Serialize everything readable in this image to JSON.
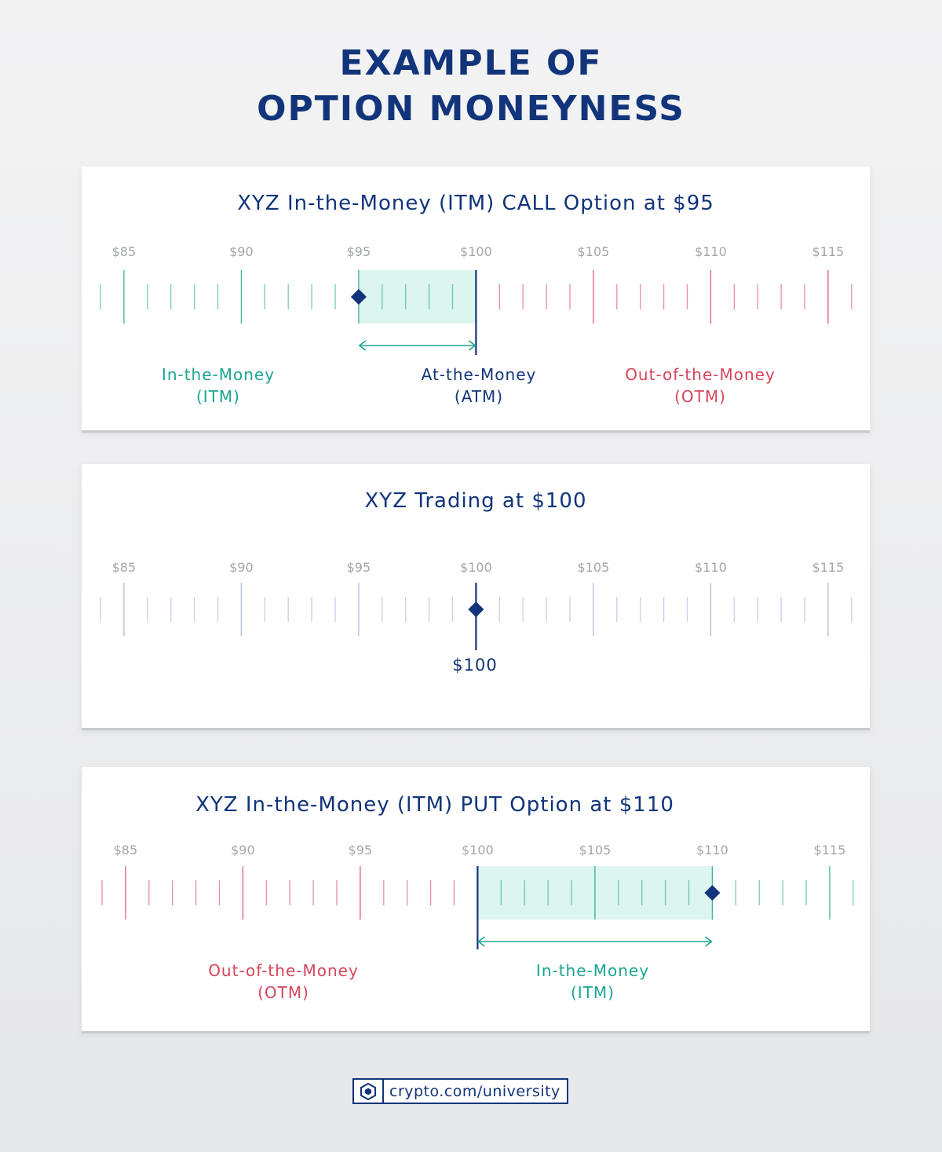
{
  "page": {
    "title_line1": "EXAMPLE OF",
    "title_line2": "OPTION MONEYNESS"
  },
  "colors": {
    "navy": "#11347a",
    "itm_green": "#1aa58f",
    "otm_red": "#d6445a",
    "zone_fill": "#dcf5ef",
    "neutral_tick": "#9db3d9",
    "tick_label_gray": "#a3a6ab"
  },
  "scale": {
    "min": 84,
    "max": 116,
    "step": 1,
    "labels": [
      "$85",
      "$90",
      "$95",
      "$100",
      "$105",
      "$110",
      "$115"
    ],
    "label_values": [
      85,
      90,
      95,
      100,
      105,
      110,
      115
    ]
  },
  "panels": [
    {
      "title": "XYZ In-the-Money (ITM) CALL Option at $95",
      "marker_value": 95,
      "reference_value": 100,
      "highlight_range": [
        95,
        100
      ],
      "arrow_range": [
        95,
        100
      ],
      "tick_color_below_reference": "itm",
      "tick_color_above_reference": "otm",
      "zones": [
        {
          "line1": "In-the-Money",
          "line2": "(ITM)",
          "tone": "itm"
        },
        {
          "line1": "At-the-Money",
          "line2": "(ATM)",
          "tone": "atm"
        },
        {
          "line1": "Out-of-the-Money",
          "line2": "(OTM)",
          "tone": "otm"
        }
      ]
    },
    {
      "title": "XYZ Trading at $100",
      "marker_value": 100,
      "marker_label": "$100",
      "tick_tone": "neutral"
    },
    {
      "title": "XYZ In-the-Money (ITM) PUT Option at $110",
      "marker_value": 110,
      "reference_value": 100,
      "highlight_range": [
        100,
        110
      ],
      "arrow_range": [
        100,
        110
      ],
      "tick_color_below_reference": "otm",
      "tick_color_above_reference": "itm",
      "zones": [
        {
          "line1": "Out-of-the-Money",
          "line2": "(OTM)",
          "tone": "otm"
        },
        {
          "line1": "In-the-Money",
          "line2": "(ITM)",
          "tone": "itm"
        }
      ]
    }
  ],
  "footer": {
    "url": "crypto.com/university",
    "logo_icon": "crypto-com-lion-shield-icon"
  }
}
